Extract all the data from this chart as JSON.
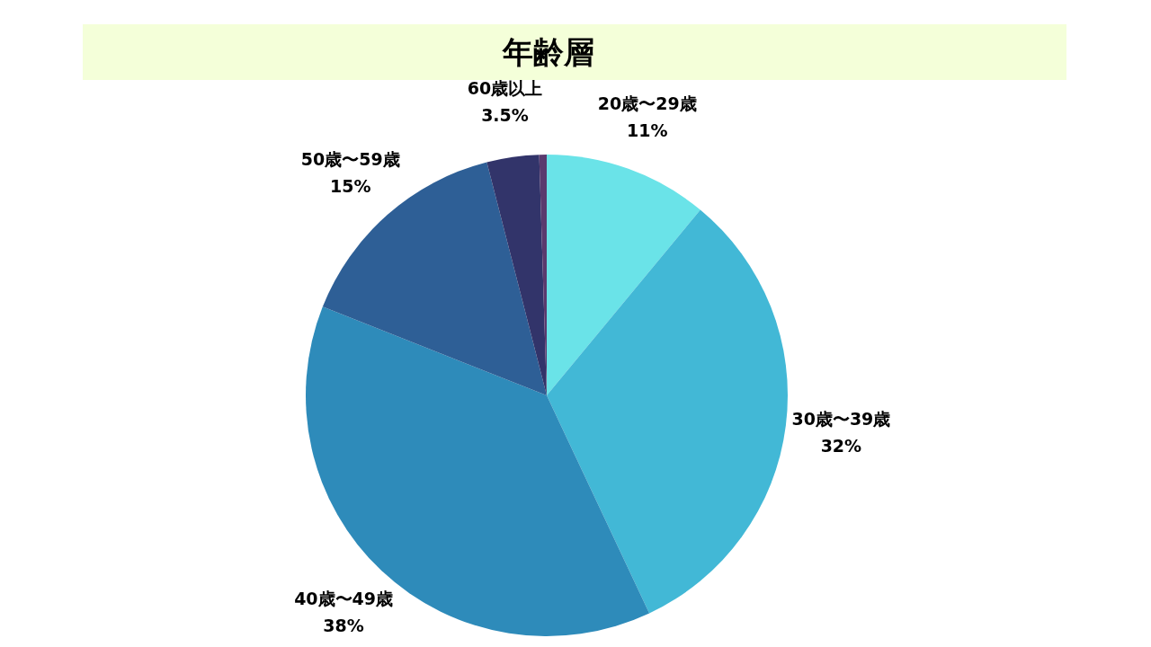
{
  "chart_data": {
    "type": "pie",
    "title": "年齢層",
    "categories": [
      "20歳〜29歳",
      "30歳〜39歳",
      "40歳〜49歳",
      "50歳〜59歳",
      "60歳以上",
      null
    ],
    "values": [
      11,
      32,
      38,
      15,
      3.5,
      0.5
    ],
    "value_labels": [
      "11%",
      "32%",
      "38%",
      "15%",
      "3.5%",
      null
    ],
    "colors": [
      "#6ae3e8",
      "#42b8d6",
      "#2e8bba",
      "#2e5f96",
      "#32346a",
      "#5a3a6e"
    ]
  }
}
